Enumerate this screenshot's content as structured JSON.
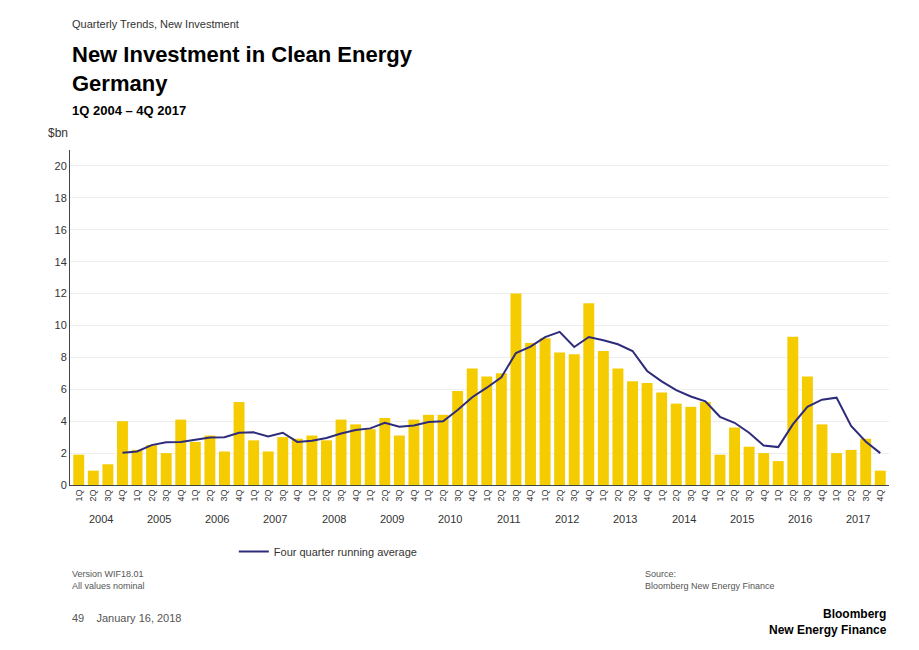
{
  "chart_data": {
    "type": "bar",
    "supertitle": "Quarterly Trends, New Investment",
    "title": "New Investment in Clean Energy\nGermany",
    "subtitle": "1Q 2004 – 4Q 2017",
    "ylabel": "$bn",
    "categories": [
      "1Q",
      "2Q",
      "3Q",
      "4Q",
      "1Q",
      "2Q",
      "3Q",
      "4Q",
      "1Q",
      "2Q",
      "3Q",
      "4Q",
      "1Q",
      "2Q",
      "3Q",
      "4Q",
      "1Q",
      "2Q",
      "3Q",
      "4Q",
      "1Q",
      "2Q",
      "3Q",
      "4Q",
      "1Q",
      "2Q",
      "3Q",
      "4Q",
      "1Q",
      "2Q",
      "3Q",
      "4Q",
      "1Q",
      "2Q",
      "3Q",
      "4Q",
      "1Q",
      "2Q",
      "3Q",
      "4Q",
      "1Q",
      "2Q",
      "3Q",
      "4Q",
      "1Q",
      "2Q",
      "3Q",
      "4Q",
      "1Q",
      "2Q",
      "3Q",
      "4Q",
      "1Q",
      "2Q",
      "3Q",
      "4Q"
    ],
    "category_groups": [
      "2004",
      "2005",
      "2006",
      "2007",
      "2008",
      "2009",
      "2010",
      "2011",
      "2012",
      "2013",
      "2014",
      "2015",
      "2016",
      "2017"
    ],
    "series": [
      {
        "type": "bar",
        "color": "#f5cc00",
        "values": [
          1.9,
          0.9,
          1.3,
          4.0,
          2.2,
          2.5,
          2.0,
          4.1,
          2.7,
          3.1,
          2.1,
          5.2,
          2.8,
          2.1,
          3.0,
          2.9,
          3.1,
          2.8,
          4.1,
          3.8,
          3.5,
          4.2,
          3.1,
          4.1,
          4.4,
          4.4,
          5.9,
          7.3,
          6.8,
          7.0,
          12.0,
          8.9,
          9.2,
          8.3,
          8.2,
          11.4,
          8.4,
          7.3,
          6.5,
          6.4,
          5.8,
          5.1,
          4.9,
          5.2,
          1.9,
          3.6,
          2.4,
          2.0,
          1.5,
          9.3,
          6.8,
          3.8,
          2.0,
          2.2,
          2.9,
          0.9
        ]
      },
      {
        "type": "line",
        "name": "Four quarter running average",
        "color": "#2e2b7a",
        "values": [
          null,
          null,
          null,
          2.025,
          2.1,
          2.5,
          2.675,
          2.7,
          2.825,
          2.975,
          3.0,
          3.275,
          3.3,
          3.05,
          3.275,
          2.7,
          2.775,
          2.95,
          3.225,
          3.45,
          3.55,
          3.9,
          3.65,
          3.725,
          3.95,
          4.0,
          4.7,
          5.5,
          6.1,
          6.75,
          8.275,
          8.675,
          9.275,
          9.6,
          8.65,
          9.275,
          9.075,
          8.825,
          8.4,
          7.15,
          6.5,
          5.95,
          5.55,
          5.25,
          4.275,
          3.9,
          3.275,
          2.475,
          2.375,
          3.8,
          4.9,
          5.35,
          5.475,
          3.7,
          2.725,
          2.0
        ]
      }
    ],
    "ylim": [
      0,
      21
    ],
    "yticks": [
      0,
      2,
      4,
      6,
      8,
      10,
      12,
      14,
      16,
      18,
      20
    ],
    "grid": true,
    "legend": "bottom",
    "annotations": [
      "Version WIF18.01\nAll values nominal",
      "Source:\nBloomberg New Energy Finance",
      "49    January 16, 2018",
      "Bloomberg\nNew Energy Finance"
    ]
  }
}
